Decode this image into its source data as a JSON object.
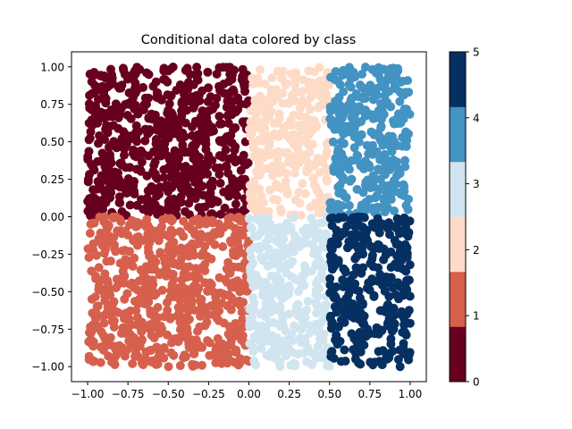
{
  "chart_data": {
    "type": "scatter",
    "title": "Conditional data colored by class",
    "xlabel": "",
    "ylabel": "",
    "xlim": [
      -1.1,
      1.1
    ],
    "ylim": [
      -1.1,
      1.1
    ],
    "x_ticks": [
      -1.0,
      -0.75,
      -0.5,
      -0.25,
      0.0,
      0.25,
      0.5,
      0.75,
      1.0
    ],
    "x_tick_labels": [
      "−1.00",
      "−0.75",
      "−0.50",
      "−0.25",
      "0.00",
      "0.25",
      "0.50",
      "0.75",
      "1.00"
    ],
    "y_ticks": [
      -1.0,
      -0.75,
      -0.5,
      -0.25,
      0.0,
      0.25,
      0.5,
      0.75,
      1.0
    ],
    "y_tick_labels": [
      "−1.00",
      "−0.75",
      "−0.50",
      "−0.25",
      "0.00",
      "0.25",
      "0.50",
      "0.75",
      "1.00"
    ],
    "grid": false,
    "colorbar": {
      "min": 0,
      "max": 5,
      "ticks": [
        0,
        1,
        2,
        3,
        4,
        5
      ],
      "tick_labels": [
        "0",
        "1",
        "2",
        "3",
        "4",
        "5"
      ],
      "colors": [
        "#67001f",
        "#d6604d",
        "#fddbc7",
        "#d1e5f0",
        "#4393c3",
        "#053061"
      ]
    },
    "class_regions": [
      {
        "class": 0,
        "x": [
          -1.0,
          0.0
        ],
        "y": [
          0.0,
          1.0
        ],
        "points": 650
      },
      {
        "class": 1,
        "x": [
          -1.0,
          0.0
        ],
        "y": [
          -1.0,
          0.0
        ],
        "points": 650
      },
      {
        "class": 2,
        "x": [
          0.0,
          0.5
        ],
        "y": [
          0.0,
          1.0
        ],
        "points": 320
      },
      {
        "class": 3,
        "x": [
          0.0,
          0.5
        ],
        "y": [
          -1.0,
          0.0
        ],
        "points": 320
      },
      {
        "class": 4,
        "x": [
          0.5,
          1.0
        ],
        "y": [
          0.0,
          1.0
        ],
        "points": 320
      },
      {
        "class": 5,
        "x": [
          0.5,
          1.0
        ],
        "y": [
          -1.0,
          0.0
        ],
        "points": 320
      }
    ]
  }
}
